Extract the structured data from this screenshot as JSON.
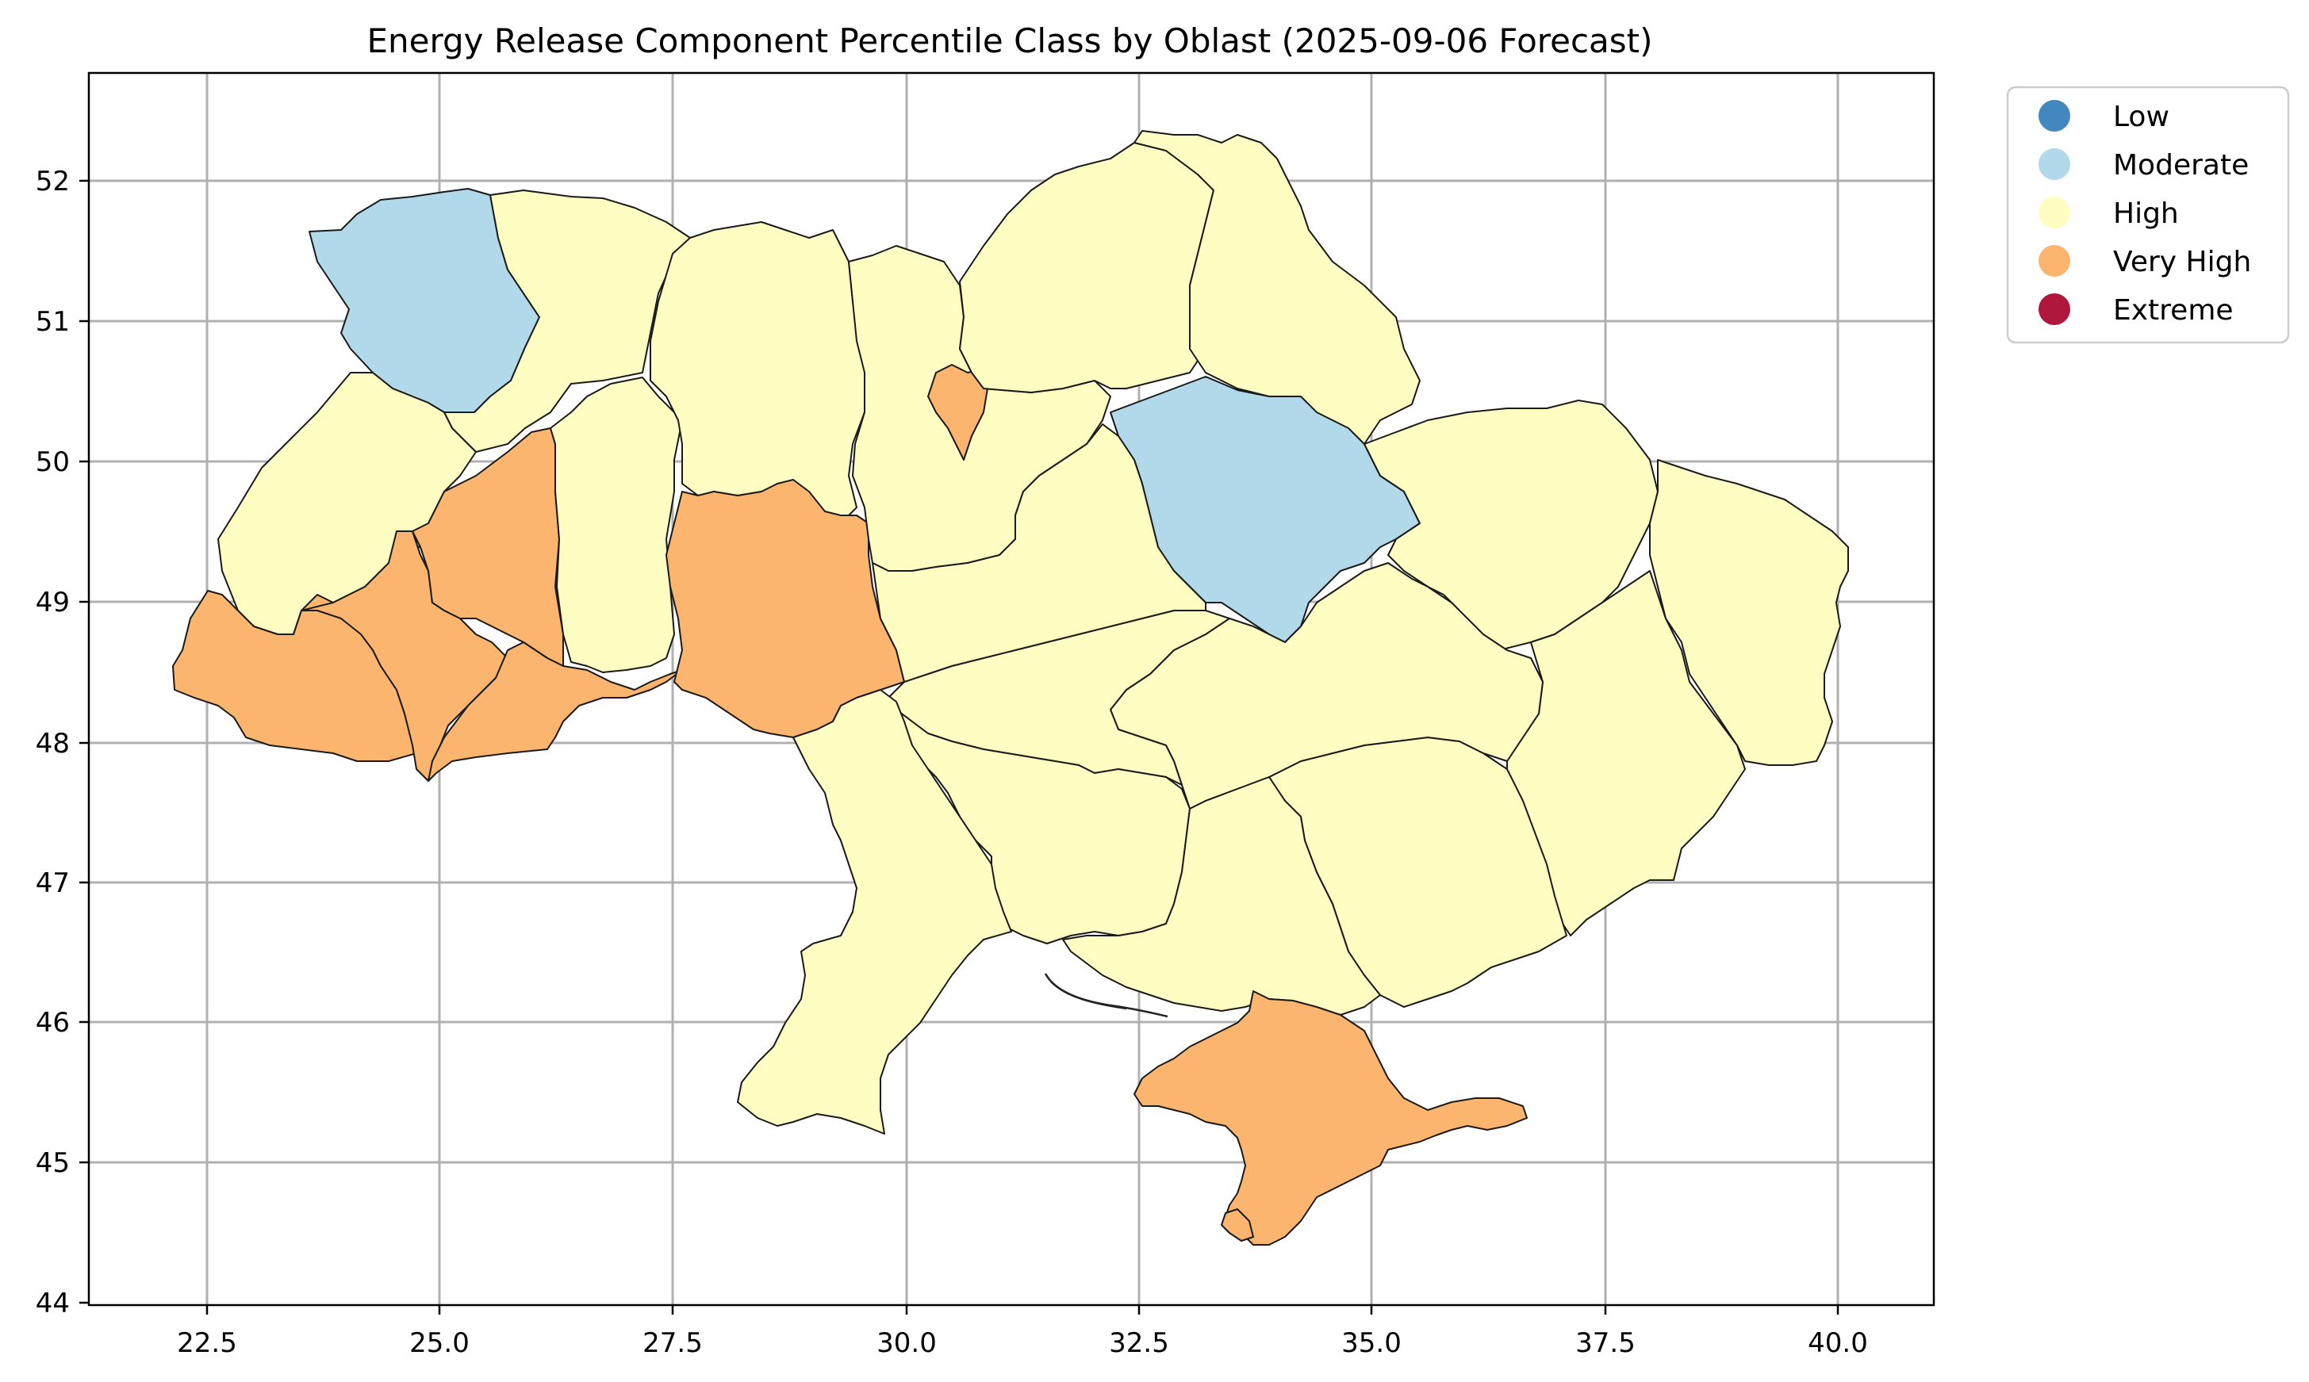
{
  "title": "Energy Release Component Percentile Class by Oblast (2025-09-06 Forecast)",
  "x_ticks": [
    "22.5",
    "25.0",
    "27.5",
    "30.0",
    "32.5",
    "35.0",
    "37.5",
    "40.0"
  ],
  "y_ticks": [
    "52",
    "51",
    "50",
    "49",
    "48",
    "47",
    "46",
    "45",
    "44"
  ],
  "legend": [
    {
      "label": "Low",
      "color": "#4287be"
    },
    {
      "label": "Moderate",
      "color": "#b2d9ea"
    },
    {
      "label": "High",
      "color": "#fefdc2"
    },
    {
      "label": "Very High",
      "color": "#fbb56f"
    },
    {
      "label": "Extreme",
      "color": "#b0173d"
    }
  ],
  "chart_data": {
    "type": "choropleth",
    "xlim": [
      21.3,
      41.1
    ],
    "ylim": [
      44.0,
      52.8
    ],
    "grid": true,
    "legend_position": "outside-top-right",
    "classes": [
      "Low",
      "Moderate",
      "High",
      "Very High",
      "Extreme"
    ]
  }
}
